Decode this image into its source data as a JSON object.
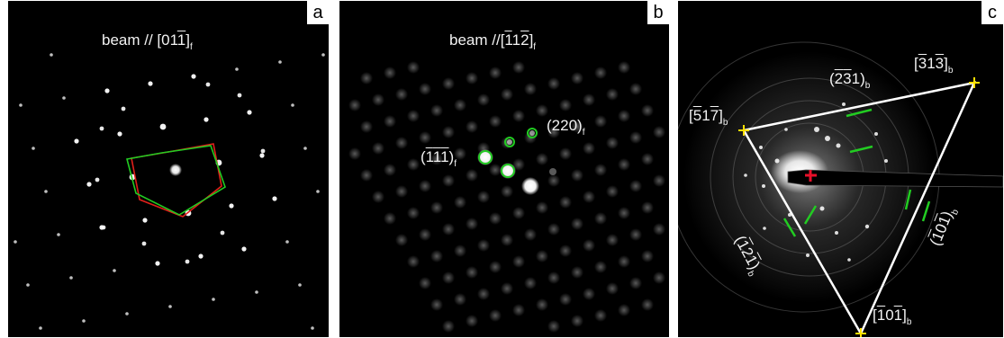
{
  "panels": [
    {
      "tag": "a",
      "annotations": [
        {
          "pre": "beam // [01",
          "bar": "1",
          "post": "]",
          "sub": "f"
        }
      ]
    },
    {
      "tag": "b",
      "annotations": [
        {
          "pre": "beam //[",
          "bar1": "1",
          "mid1": "1",
          "bar2": "2",
          "post": "]",
          "sub": "f"
        },
        {
          "pre": "(220)",
          "sub": "f"
        },
        {
          "pre": "(",
          "bar1": "1",
          "bar2": "1",
          "bar3": "1",
          "post": ")",
          "sub": "f"
        }
      ]
    },
    {
      "tag": "c",
      "annotations": [
        {
          "pre": "[",
          "bar1": "3",
          "mid": "1",
          "bar2": "3",
          "post": "]",
          "sub": "b"
        },
        {
          "pre": "(",
          "bar1": "2",
          "bar2": "3",
          "mid": "1",
          "post": ")",
          "sub": "b"
        },
        {
          "pre": "[",
          "bar1": "5",
          "mid": "1",
          "bar2": "7",
          "post": "]",
          "sub": "b"
        },
        {
          "pre": "(",
          "bar1": "1",
          "mid": "2",
          "bar2": "1",
          "post": ")",
          "sub": "b"
        },
        {
          "pre": "(",
          "bar1": "1",
          "mid": "0",
          "bar2": "1",
          "post": ")",
          "sub": "b"
        },
        {
          "pre": "[",
          "bar1": "1",
          "mid": "0",
          "bar2": "1",
          "post": "]",
          "sub": "b"
        }
      ]
    }
  ],
  "colors": {
    "background": "#000000",
    "spot": "#ffffff",
    "red_hexagon": "#e0201a",
    "green_marks": "#22cc22",
    "yellow_markers": "#ffe000",
    "triangle": "#ffffff",
    "center_cross": "#e8102a"
  }
}
